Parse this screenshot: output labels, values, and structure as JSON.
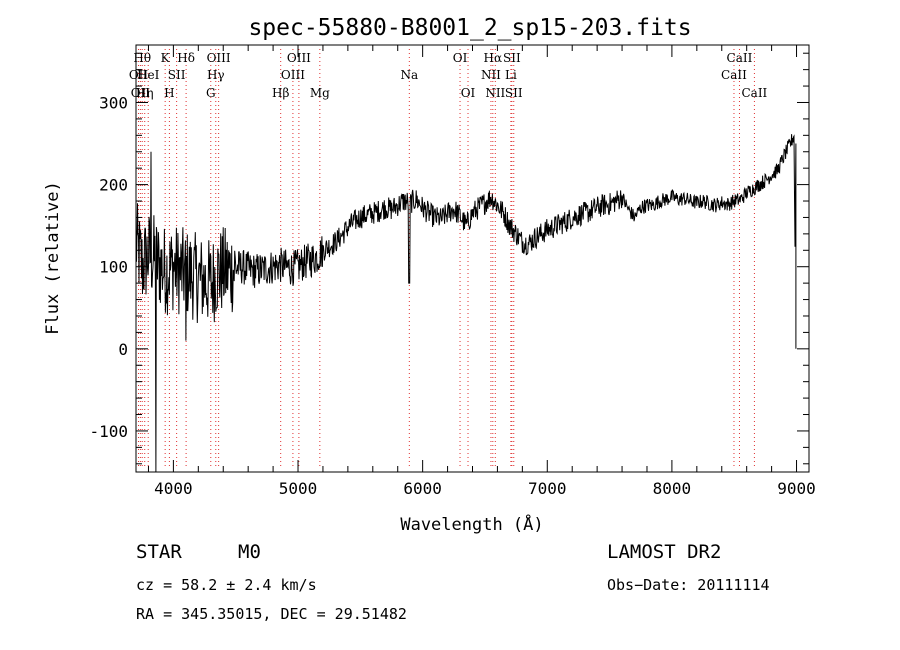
{
  "chart_data": {
    "type": "line",
    "title": "spec-55880-B8001_2_sp15-203.fits",
    "xlabel": "Wavelength (Å)",
    "ylabel": "Flux (relative)",
    "xlim": [
      3700,
      9100
    ],
    "ylim": [
      -150,
      370
    ],
    "xticks": [
      4000,
      5000,
      6000,
      7000,
      8000,
      9000
    ],
    "yticks": [
      -100,
      0,
      100,
      200,
      300
    ],
    "series_color": "#000000",
    "line_color": "#e03030",
    "grid": false,
    "series": [
      {
        "values": [
          [
            3700,
            130
          ],
          [
            3750,
            100
          ],
          [
            3800,
            115
          ],
          [
            3850,
            110
          ],
          [
            3900,
            100
          ],
          [
            3950,
            95
          ],
          [
            4000,
            100
          ],
          [
            4050,
            95
          ],
          [
            4100,
            92
          ],
          [
            4150,
            90
          ],
          [
            4200,
            85
          ],
          [
            4250,
            82
          ],
          [
            4300,
            80
          ],
          [
            4350,
            92
          ],
          [
            4400,
            95
          ],
          [
            4450,
            95
          ],
          [
            4500,
            98
          ],
          [
            4550,
            100
          ],
          [
            4600,
            97
          ],
          [
            4650,
            95
          ],
          [
            4700,
            96
          ],
          [
            4750,
            98
          ],
          [
            4800,
            100
          ],
          [
            4850,
            102
          ],
          [
            4900,
            100
          ],
          [
            4950,
            98
          ],
          [
            5000,
            100
          ],
          [
            5050,
            105
          ],
          [
            5100,
            108
          ],
          [
            5150,
            112
          ],
          [
            5200,
            120
          ],
          [
            5250,
            125
          ],
          [
            5300,
            130
          ],
          [
            5350,
            138
          ],
          [
            5400,
            148
          ],
          [
            5450,
            155
          ],
          [
            5500,
            160
          ],
          [
            5550,
            163
          ],
          [
            5600,
            165
          ],
          [
            5650,
            168
          ],
          [
            5700,
            172
          ],
          [
            5750,
            170
          ],
          [
            5800,
            175
          ],
          [
            5850,
            180
          ],
          [
            5900,
            178
          ],
          [
            5950,
            182
          ],
          [
            6000,
            172
          ],
          [
            6050,
            165
          ],
          [
            6100,
            160
          ],
          [
            6150,
            158
          ],
          [
            6200,
            165
          ],
          [
            6250,
            170
          ],
          [
            6300,
            162
          ],
          [
            6350,
            150
          ],
          [
            6400,
            165
          ],
          [
            6450,
            172
          ],
          [
            6500,
            178
          ],
          [
            6550,
            185
          ],
          [
            6600,
            175
          ],
          [
            6650,
            165
          ],
          [
            6700,
            150
          ],
          [
            6750,
            140
          ],
          [
            6800,
            130
          ],
          [
            6850,
            128
          ],
          [
            6900,
            135
          ],
          [
            6950,
            140
          ],
          [
            7000,
            145
          ],
          [
            7050,
            148
          ],
          [
            7100,
            152
          ],
          [
            7150,
            155
          ],
          [
            7200,
            160
          ],
          [
            7250,
            163
          ],
          [
            7300,
            165
          ],
          [
            7350,
            168
          ],
          [
            7400,
            172
          ],
          [
            7450,
            175
          ],
          [
            7500,
            176
          ],
          [
            7550,
            180
          ],
          [
            7600,
            185
          ],
          [
            7650,
            170
          ],
          [
            7700,
            160
          ],
          [
            7750,
            172
          ],
          [
            7800,
            175
          ],
          [
            7850,
            175
          ],
          [
            7900,
            180
          ],
          [
            7950,
            182
          ],
          [
            8000,
            185
          ],
          [
            8050,
            182
          ],
          [
            8100,
            183
          ],
          [
            8150,
            180
          ],
          [
            8200,
            178
          ],
          [
            8250,
            180
          ],
          [
            8300,
            177
          ],
          [
            8350,
            175
          ],
          [
            8400,
            178
          ],
          [
            8450,
            176
          ],
          [
            8500,
            180
          ],
          [
            8550,
            182
          ],
          [
            8600,
            190
          ],
          [
            8650,
            195
          ],
          [
            8700,
            200
          ],
          [
            8750,
            205
          ],
          [
            8800,
            212
          ],
          [
            8850,
            218
          ],
          [
            8900,
            235
          ],
          [
            8950,
            250
          ],
          [
            8980,
            260
          ],
          [
            8995,
            0
          ],
          [
            9000,
            0
          ]
        ]
      }
    ],
    "features": [
      {
        "x": 3720,
        "labels": [
          "OII"
        ],
        "row": 2
      },
      {
        "x": 3735,
        "labels": [
          "OII"
        ],
        "row": 3
      },
      {
        "x": 3750,
        "labels": [
          "Hθ"
        ],
        "row": 1
      },
      {
        "x": 3770,
        "labels": [
          "Hη"
        ],
        "row": 3
      },
      {
        "x": 3798,
        "labels": [
          "HeI"
        ],
        "row": 2
      },
      {
        "x": 3934,
        "labels": [
          "K"
        ],
        "row": 1
      },
      {
        "x": 3968,
        "labels": [
          "H"
        ],
        "row": 3
      },
      {
        "x": 4026,
        "labels": [
          "SII"
        ],
        "row": 2
      },
      {
        "x": 4102,
        "labels": [
          "Hδ"
        ],
        "row": 1
      },
      {
        "x": 4300,
        "labels": [
          "G"
        ],
        "row": 3
      },
      {
        "x": 4340,
        "labels": [
          "Hγ"
        ],
        "row": 2
      },
      {
        "x": 4363,
        "labels": [
          "OIII"
        ],
        "row": 1
      },
      {
        "x": 4861,
        "labels": [
          "Hβ"
        ],
        "row": 3
      },
      {
        "x": 4959,
        "labels": [
          "OIII"
        ],
        "row": 2
      },
      {
        "x": 5007,
        "labels": [
          "OIII"
        ],
        "row": 1
      },
      {
        "x": 5175,
        "labels": [
          "Mg"
        ],
        "row": 3
      },
      {
        "x": 5893,
        "labels": [
          "Na"
        ],
        "row": 2
      },
      {
        "x": 6300,
        "labels": [
          "OI"
        ],
        "row": 1
      },
      {
        "x": 6364,
        "labels": [
          "OI"
        ],
        "row": 3
      },
      {
        "x": 6548,
        "labels": [
          "NII"
        ],
        "row": 2
      },
      {
        "x": 6563,
        "labels": [
          "Hα"
        ],
        "row": 1
      },
      {
        "x": 6583,
        "labels": [
          "NII"
        ],
        "row": 3
      },
      {
        "x": 6708,
        "labels": [
          "Li"
        ],
        "row": 2
      },
      {
        "x": 6716,
        "labels": [
          "SII"
        ],
        "row": 1
      },
      {
        "x": 6731,
        "labels": [
          "SII"
        ],
        "row": 3
      },
      {
        "x": 8498,
        "labels": [
          "CaII"
        ],
        "row": 2
      },
      {
        "x": 8542,
        "labels": [
          "CaII"
        ],
        "row": 1
      },
      {
        "x": 8662,
        "labels": [
          "CaII"
        ],
        "row": 3
      }
    ]
  },
  "info": {
    "class": "STAR",
    "subclass": "M0",
    "survey": "LAMOST DR2",
    "cz": "cz = 58.2 ± 2.4 km/s",
    "obs_date": "Obs−Date: 20111114",
    "radec": "RA = 345.35015, DEC =  29.51482"
  }
}
